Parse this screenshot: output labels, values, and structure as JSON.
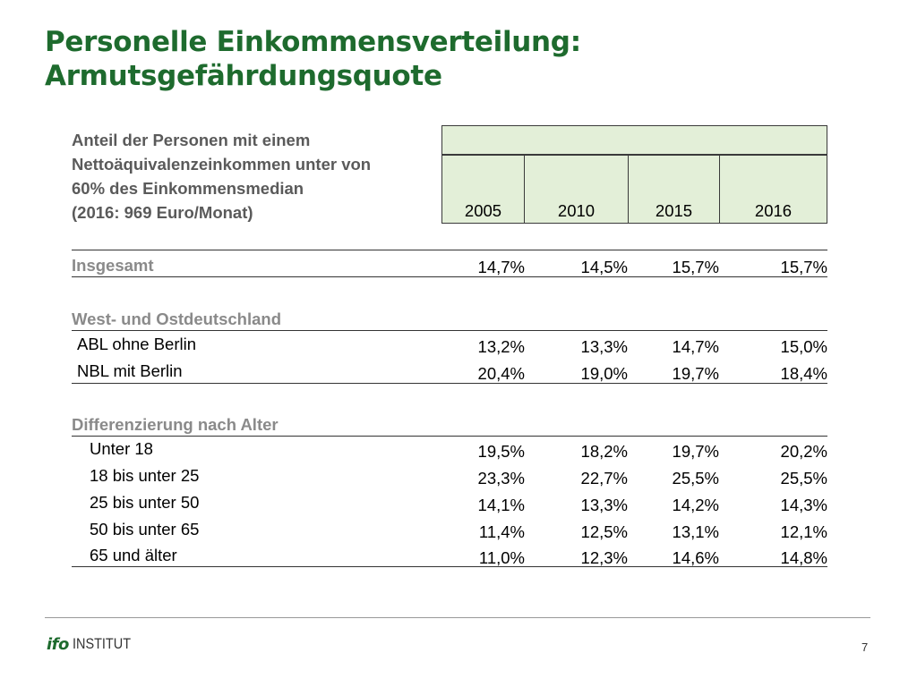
{
  "title": {
    "line1": "Personelle Einkommensverteilung:",
    "line2": "Armutsgefährdungsquote"
  },
  "header": {
    "label_lines": [
      "Anteil der Personen mit einem",
      "Nettoäquivalenzeinkommen unter von",
      "60% des Einkommensmedian",
      "(2016: 969 Euro/Monat)"
    ],
    "years": [
      "2005",
      "2010",
      "2015",
      "2016"
    ]
  },
  "rows": {
    "insgesamt": {
      "label": "Insgesamt",
      "values": [
        "14,7%",
        "14,5%",
        "15,7%",
        "15,7%"
      ]
    },
    "section_west_ost": "West- und Ostdeutschland",
    "abl": {
      "label": "ABL ohne Berlin",
      "values": [
        "13,2%",
        "13,3%",
        "14,7%",
        "15,0%"
      ]
    },
    "nbl": {
      "label": "NBL mit Berlin",
      "values": [
        "20,4%",
        "19,0%",
        "19,7%",
        "18,4%"
      ]
    },
    "section_alter": "Differenzierung nach Alter",
    "alter": [
      {
        "label": "Unter 18",
        "values": [
          "19,5%",
          "18,2%",
          "19,7%",
          "20,2%"
        ]
      },
      {
        "label": "18 bis unter 25",
        "values": [
          "23,3%",
          "22,7%",
          "25,5%",
          "25,5%"
        ]
      },
      {
        "label": "25 bis unter 50",
        "values": [
          "14,1%",
          "13,3%",
          "14,2%",
          "14,3%"
        ]
      },
      {
        "label": "50 bis unter 65",
        "values": [
          "11,4%",
          "12,5%",
          "13,1%",
          "12,1%"
        ]
      },
      {
        "label": "65 und älter",
        "values": [
          "11,0%",
          "12,3%",
          "14,6%",
          "14,8%"
        ]
      }
    ]
  },
  "footer": {
    "logo_ifo": "ifo",
    "logo_institut": "INSTITUT",
    "page": "7"
  },
  "colors": {
    "title": "#1e6b2e",
    "header_fill": "#e3efd8",
    "section_text": "#8a8a8a"
  }
}
